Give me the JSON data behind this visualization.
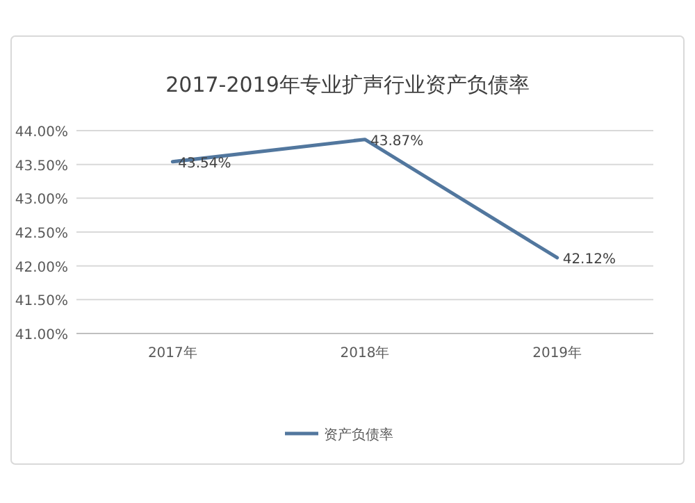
{
  "chart_data": {
    "type": "line",
    "title": "2017-2019年专业扩声行业资产负债率",
    "categories": [
      "2017年",
      "2018年",
      "2019年"
    ],
    "series": [
      {
        "name": "资产负债率",
        "color": "#52779e",
        "values": [
          43.54,
          43.87,
          42.12
        ],
        "value_labels": [
          "43.54%",
          "43.87%",
          "42.12%"
        ]
      }
    ],
    "ylim": [
      41,
      44
    ],
    "yticks": [
      {
        "value": 41,
        "label": "41.00%"
      },
      {
        "value": 41.5,
        "label": "41.50%"
      },
      {
        "value": 42,
        "label": "42.00%"
      },
      {
        "value": 42.5,
        "label": "42.50%"
      },
      {
        "value": 43,
        "label": "43.00%"
      },
      {
        "value": 43.5,
        "label": "43.50%"
      },
      {
        "value": 44,
        "label": "44.00%"
      }
    ],
    "grid": "y",
    "legend": "bottom",
    "marker": "none"
  }
}
